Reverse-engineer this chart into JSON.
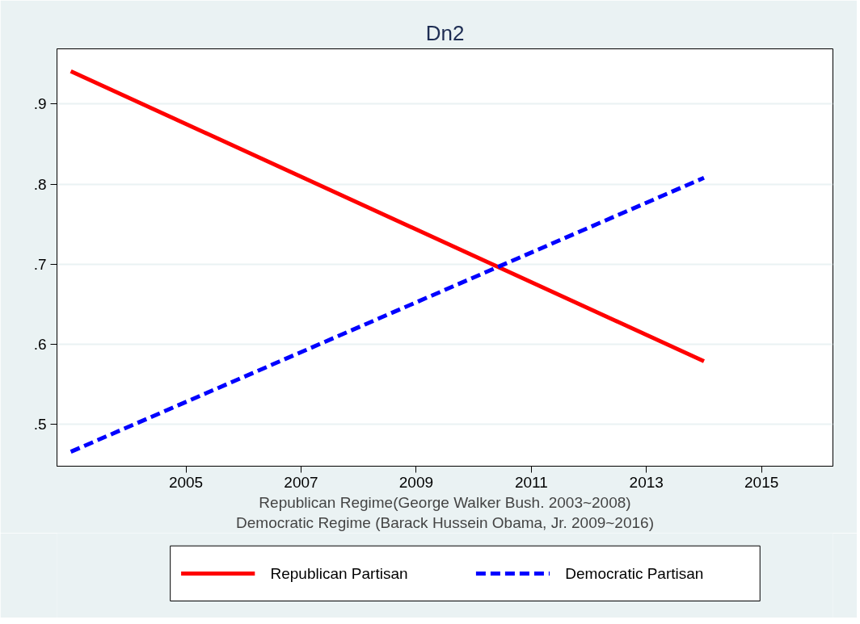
{
  "chart_data": {
    "type": "line",
    "title": "Dn2",
    "xlabel": "Republican Regime(George Walker Bush. 2003~2008)\nDemocratic Regime (Barack Hussein Obama, Jr. 2009~2016)",
    "x": [
      2003,
      2014
    ],
    "series": [
      {
        "name": "Republican Partisan",
        "color": "#ff0000",
        "values": [
          0.941,
          0.579
        ],
        "line_style": "solid"
      },
      {
        "name": "Democratic Partisan",
        "color": "#0000ff",
        "values": [
          0.466,
          0.808
        ],
        "line_style": "dashed"
      }
    ],
    "xlim": [
      2002.76,
      2016.24
    ],
    "ylim": [
      0.448,
      0.969
    ],
    "xticks": [
      2005,
      2007,
      2009,
      2011,
      2013,
      2015
    ],
    "yticks": [
      {
        "value": 0.5,
        "label": ".5"
      },
      {
        "value": 0.6,
        "label": ".6"
      },
      {
        "value": 0.7,
        "label": ".7"
      },
      {
        "value": 0.8,
        "label": ".8"
      },
      {
        "value": 0.9,
        "label": ".9"
      }
    ],
    "grid": "y",
    "legend": "bottom",
    "marker": "none"
  }
}
